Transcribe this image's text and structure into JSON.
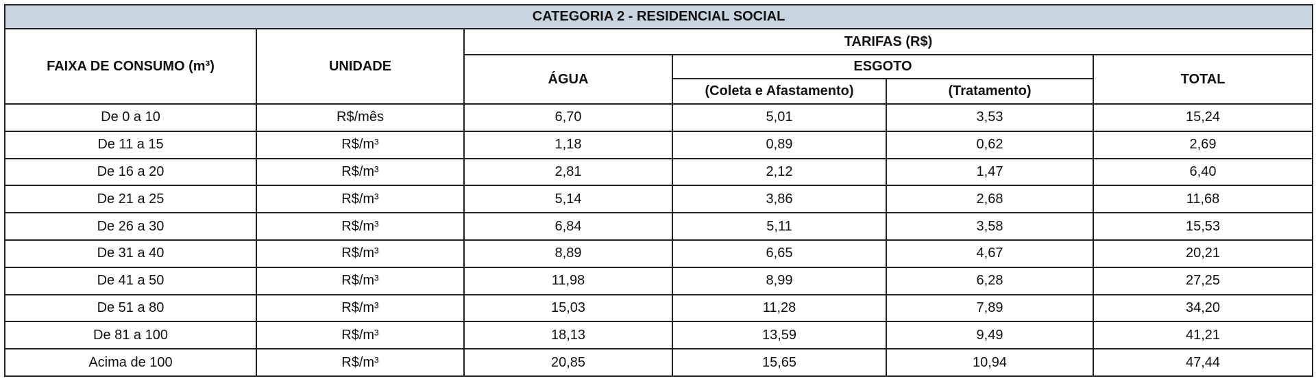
{
  "table": {
    "title": "CATEGORIA 2 - RESIDENCIAL SOCIAL",
    "header": {
      "faixa": "FAIXA DE CONSUMO (m³)",
      "unidade": "UNIDADE",
      "tarifas": "TARIFAS (R$)",
      "agua": "ÁGUA",
      "esgoto": "ESGOTO",
      "coleta": "(Coleta e Afastamento)",
      "tratamento": "(Tratamento)",
      "total": "TOTAL"
    },
    "rows": [
      [
        "De 0 a 10",
        "R$/mês",
        "6,70",
        "5,01",
        "3,53",
        "15,24"
      ],
      [
        "De 11 a 15",
        "R$/m³",
        "1,18",
        "0,89",
        "0,62",
        "2,69"
      ],
      [
        "De 16 a 20",
        "R$/m³",
        "2,81",
        "2,12",
        "1,47",
        "6,40"
      ],
      [
        "De 21 a 25",
        "R$/m³",
        "5,14",
        "3,86",
        "2,68",
        "11,68"
      ],
      [
        "De 26 a 30",
        "R$/m³",
        "6,84",
        "5,11",
        "3,58",
        "15,53"
      ],
      [
        "De 31 a 40",
        "R$/m³",
        "8,89",
        "6,65",
        "4,67",
        "20,21"
      ],
      [
        "De 41 a 50",
        "R$/m³",
        "11,98",
        "8,99",
        "6,28",
        "27,25"
      ],
      [
        "De 51 a 80",
        "R$/m³",
        "15,03",
        "11,28",
        "7,89",
        "34,20"
      ],
      [
        "De 81 a 100",
        "R$/m³",
        "18,13",
        "13,59",
        "9,49",
        "41,21"
      ],
      [
        "Acima de 100",
        "R$/m³",
        "20,85",
        "15,65",
        "10,94",
        "47,44"
      ]
    ]
  }
}
